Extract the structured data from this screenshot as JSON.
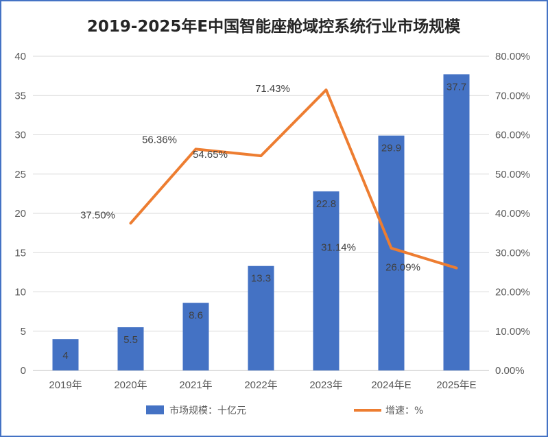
{
  "chart_data": {
    "type": "bar+line",
    "title": "2019-2025年E中国智能座舱域控系统行业市场规模",
    "categories": [
      "2019年",
      "2020年",
      "2021年",
      "2022年",
      "2023年",
      "2024年E",
      "2025年E"
    ],
    "series": [
      {
        "name": "市场规模：十亿元",
        "type": "bar",
        "axis": "left",
        "color": "#4472C4",
        "values": [
          4,
          5.5,
          8.6,
          13.3,
          22.8,
          29.9,
          37.7
        ],
        "labels": [
          "4",
          "5.5",
          "8.6",
          "13.3",
          "22.8",
          "29.9",
          "37.7"
        ]
      },
      {
        "name": "增速：%",
        "type": "line",
        "axis": "right",
        "color": "#ED7D31",
        "values": [
          null,
          37.5,
          56.36,
          54.65,
          71.43,
          31.14,
          26.09
        ],
        "labels": [
          "",
          "37.50%",
          "56.36%",
          "54.65%",
          "71.43%",
          "31.14%",
          "26.09%"
        ]
      }
    ],
    "y_left": {
      "min": 0,
      "max": 40,
      "step": 5,
      "ticks": [
        "0",
        "5",
        "10",
        "15",
        "20",
        "25",
        "30",
        "35",
        "40"
      ]
    },
    "y_right": {
      "min": 0,
      "max": 80,
      "step": 10,
      "ticks": [
        "0.00%",
        "10.00%",
        "20.00%",
        "30.00%",
        "40.00%",
        "50.00%",
        "60.00%",
        "70.00%",
        "80.00%"
      ]
    },
    "gridlines": true,
    "legend_position": "bottom"
  }
}
